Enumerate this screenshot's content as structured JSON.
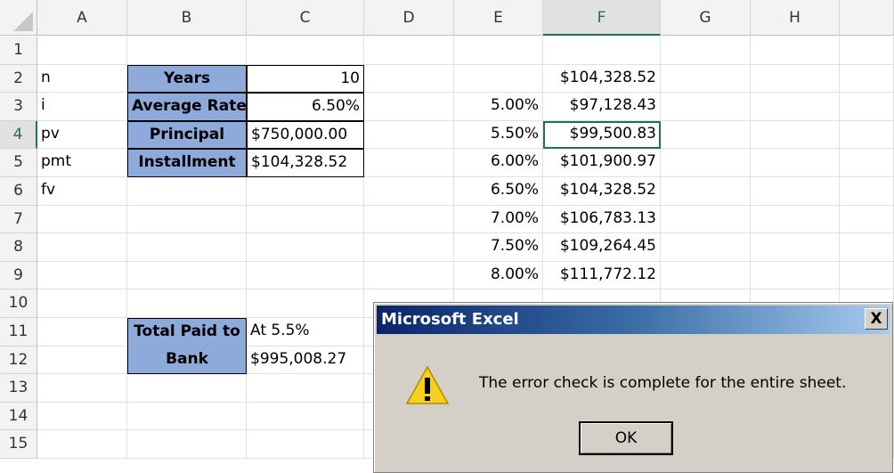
{
  "columns": [
    "A",
    "B",
    "C",
    "D",
    "E",
    "F",
    "G",
    "H"
  ],
  "rows": [
    "1",
    "2",
    "3",
    "4",
    "5",
    "6",
    "7",
    "8",
    "9",
    "10",
    "11",
    "12",
    "13",
    "14",
    "15"
  ],
  "selected": {
    "column": "F",
    "row": "4"
  },
  "cells": {
    "A2": "n",
    "A3": "i",
    "A4": "pv",
    "A5": "pmt",
    "A6": "fv",
    "B2": "Years",
    "B3": "Average Rate",
    "B4": "Principal",
    "B5": "Installment",
    "C2": "10",
    "C3": "6.50%",
    "C4": "$750,000.00",
    "C5": "$104,328.52",
    "F2": "$104,328.52",
    "E3": "5.00%",
    "F3": "$97,128.43",
    "E4": "5.50%",
    "F4": "$99,500.83",
    "E5": "6.00%",
    "F5": "$101,900.97",
    "E6": "6.50%",
    "F6": "$104,328.52",
    "E7": "7.00%",
    "F7": "$106,783.13",
    "E8": "7.50%",
    "F8": "$109,264.45",
    "E9": "8.00%",
    "F9": "$111,772.12",
    "B11": "Total Paid to",
    "C11": "At 5.5%",
    "B12": "Bank",
    "C12": "$995,008.27"
  },
  "colors": {
    "header_fill": "#8eaadb",
    "selection": "#217346"
  },
  "dialog": {
    "title": "Microsoft Excel",
    "message": "The error check is complete for the entire sheet.",
    "ok_label": "OK",
    "close_label": "X",
    "icon": "warning-icon"
  }
}
